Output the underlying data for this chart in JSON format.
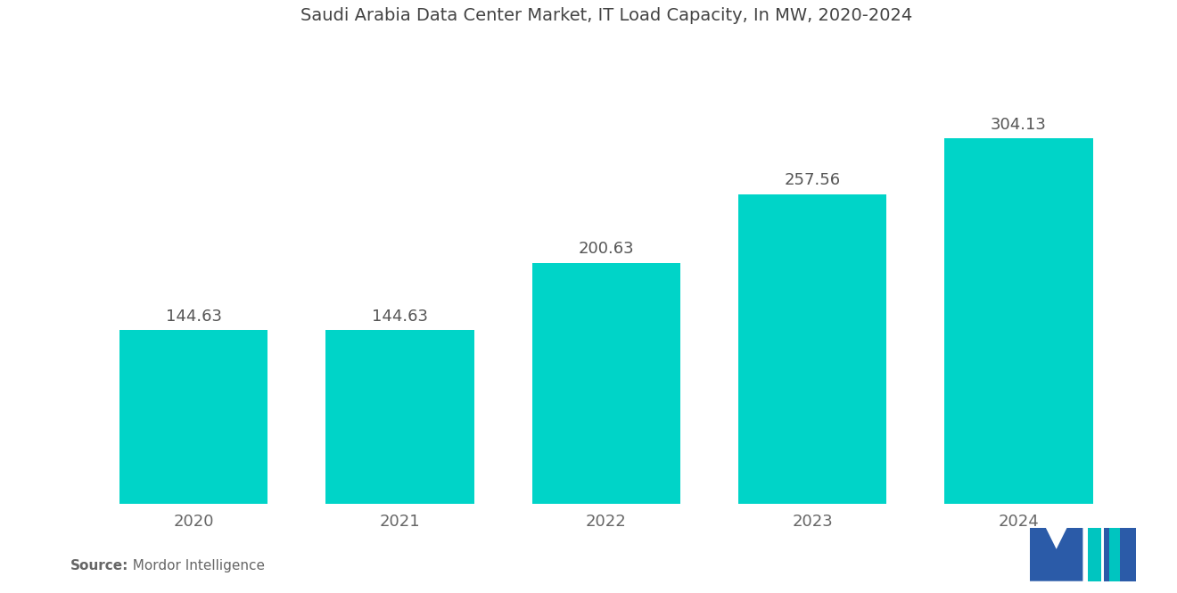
{
  "title": "Saudi Arabia Data Center Market, IT Load Capacity, In MW, 2020-2024",
  "categories": [
    "2020",
    "2021",
    "2022",
    "2023",
    "2024"
  ],
  "values": [
    144.63,
    144.63,
    200.63,
    257.56,
    304.13
  ],
  "bar_color": "#00D4C8",
  "background_color": "#ffffff",
  "title_fontsize": 14,
  "label_fontsize": 13,
  "tick_fontsize": 13,
  "source_bold": "Source:",
  "source_normal": "  Mordor Intelligence",
  "ylim": [
    0,
    380
  ],
  "bar_width": 0.72
}
